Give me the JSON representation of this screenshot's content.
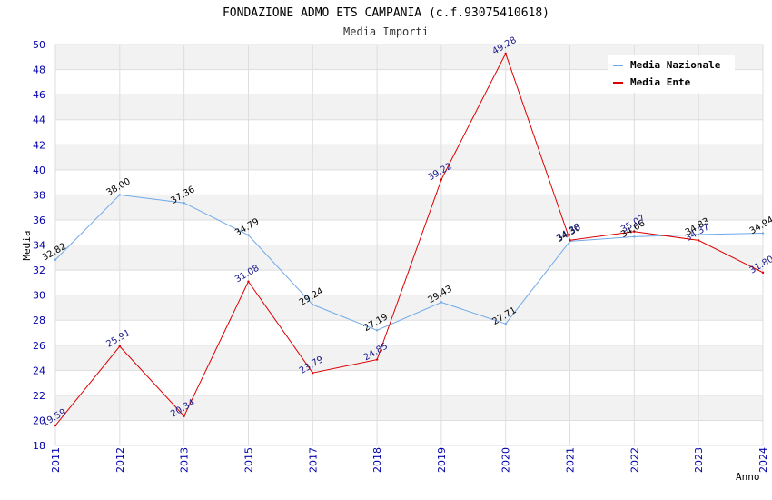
{
  "chart_data": {
    "type": "line",
    "title": "FONDAZIONE ADMO ETS CAMPANIA (c.f.93075410618)",
    "subtitle": "Media Importi",
    "xlabel": "Anno",
    "ylabel": "Media",
    "categories": [
      "2011",
      "2012",
      "2013",
      "2015",
      "2017",
      "2018",
      "2019",
      "2020",
      "2021",
      "2022",
      "2023",
      "2024"
    ],
    "ylim": [
      18,
      50
    ],
    "yticks": [
      "18",
      "20",
      "22",
      "24",
      "26",
      "28",
      "30",
      "32",
      "34",
      "36",
      "38",
      "40",
      "42",
      "44",
      "46",
      "48",
      "50"
    ],
    "grid": true,
    "legend_position": "top-right",
    "series": [
      {
        "name": "Media Nazionale",
        "color": "#6fa8e8",
        "label_color": "#000000",
        "values": [
          32.82,
          38.0,
          37.36,
          34.79,
          29.24,
          27.19,
          29.43,
          27.71,
          34.3,
          34.66,
          34.83,
          34.94
        ],
        "labels": [
          "32.82",
          "38.00",
          "37.36",
          "34.79",
          "29.24",
          "27.19",
          "29.43",
          "27.71",
          "34.30",
          "34.66",
          "34.83",
          "34.94"
        ]
      },
      {
        "name": "Media Ente",
        "color": "#dd0000",
        "label_color": "#1a1a8c",
        "values": [
          19.59,
          25.91,
          20.34,
          31.08,
          23.79,
          24.85,
          39.22,
          49.28,
          34.38,
          35.07,
          34.37,
          31.8
        ],
        "labels": [
          "19.59",
          "25.91",
          "20.34",
          "31.08",
          "23.79",
          "24.85",
          "39.22",
          "49.28",
          "34.38",
          "35.07",
          "34.37",
          "31.80"
        ]
      }
    ]
  }
}
